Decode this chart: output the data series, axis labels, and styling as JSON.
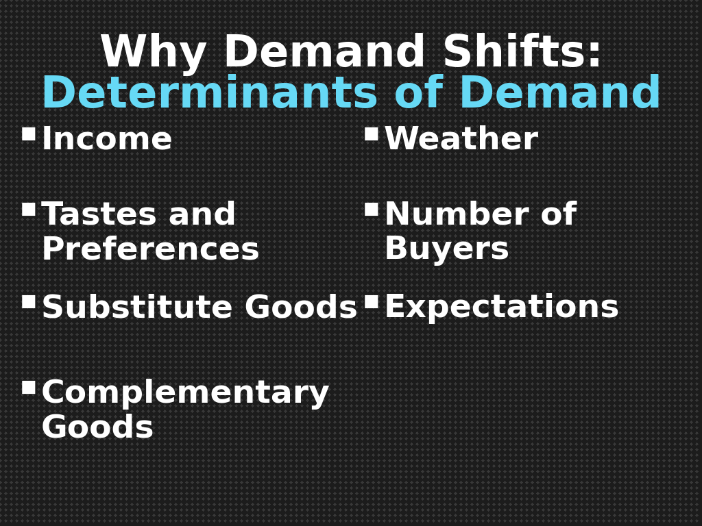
{
  "title_line1": "Why Demand Shifts:",
  "title_line2": "Determinants of Demand",
  "title_line1_color": "#ffffff",
  "title_line2_color": "#66d9f5",
  "bullet_color": "#ffffff",
  "background_color": "#1c1c1c",
  "dot_color": "#2e2e2e",
  "left_bullets": [
    "Income",
    "Tastes and\nPreferences",
    "Substitute Goods",
    "Complementary\nGoods"
  ],
  "right_bullets": [
    "Weather",
    "Number of\nBuyers",
    "Expectations",
    ""
  ],
  "title_fontsize": 46,
  "bullet_fontsize": 34,
  "figsize": [
    10.24,
    7.68
  ],
  "dpi": 100
}
